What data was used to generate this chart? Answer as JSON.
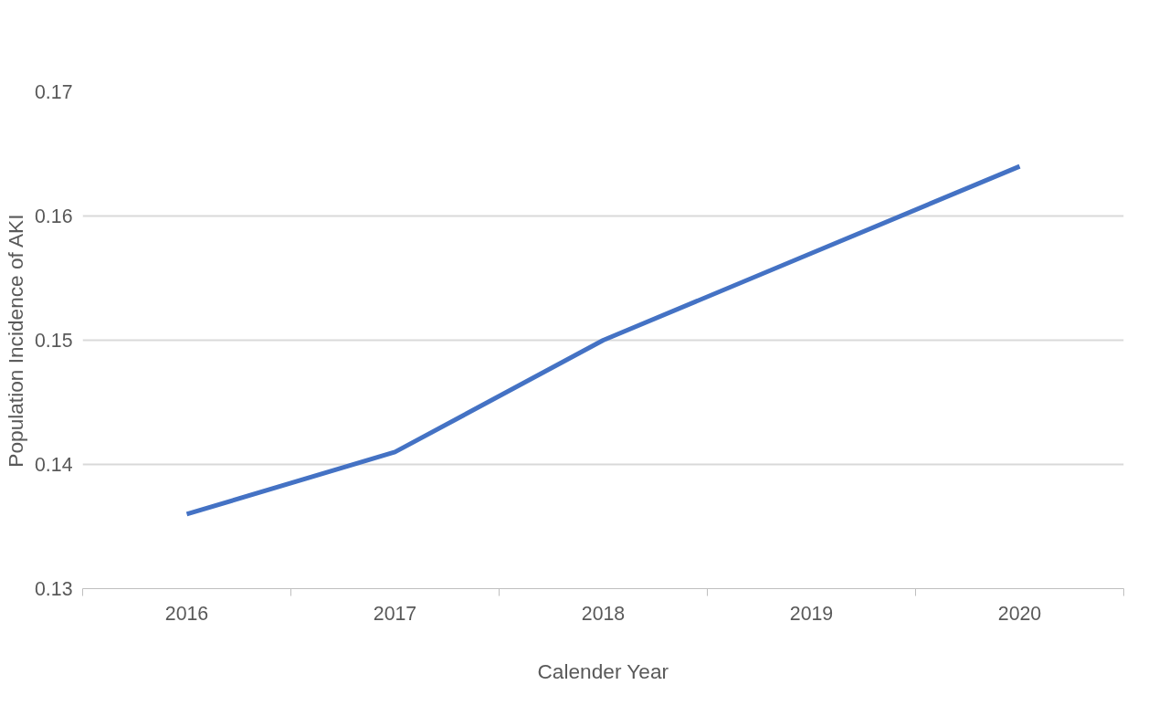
{
  "chart_data": {
    "type": "line",
    "xlabel": "Calender Year",
    "ylabel": "Population Incidence of AKI",
    "categories": [
      "2016",
      "2017",
      "2018",
      "2019",
      "2020"
    ],
    "series": [
      {
        "color": "#4472c4",
        "values": [
          0.136,
          0.141,
          0.15,
          0.157,
          0.164
        ]
      }
    ],
    "ylim": [
      0.13,
      0.17
    ],
    "yticks": [
      0.13,
      0.14,
      0.15,
      0.16,
      0.17
    ],
    "grid": "y",
    "marker": "none",
    "line_style": "solid"
  }
}
